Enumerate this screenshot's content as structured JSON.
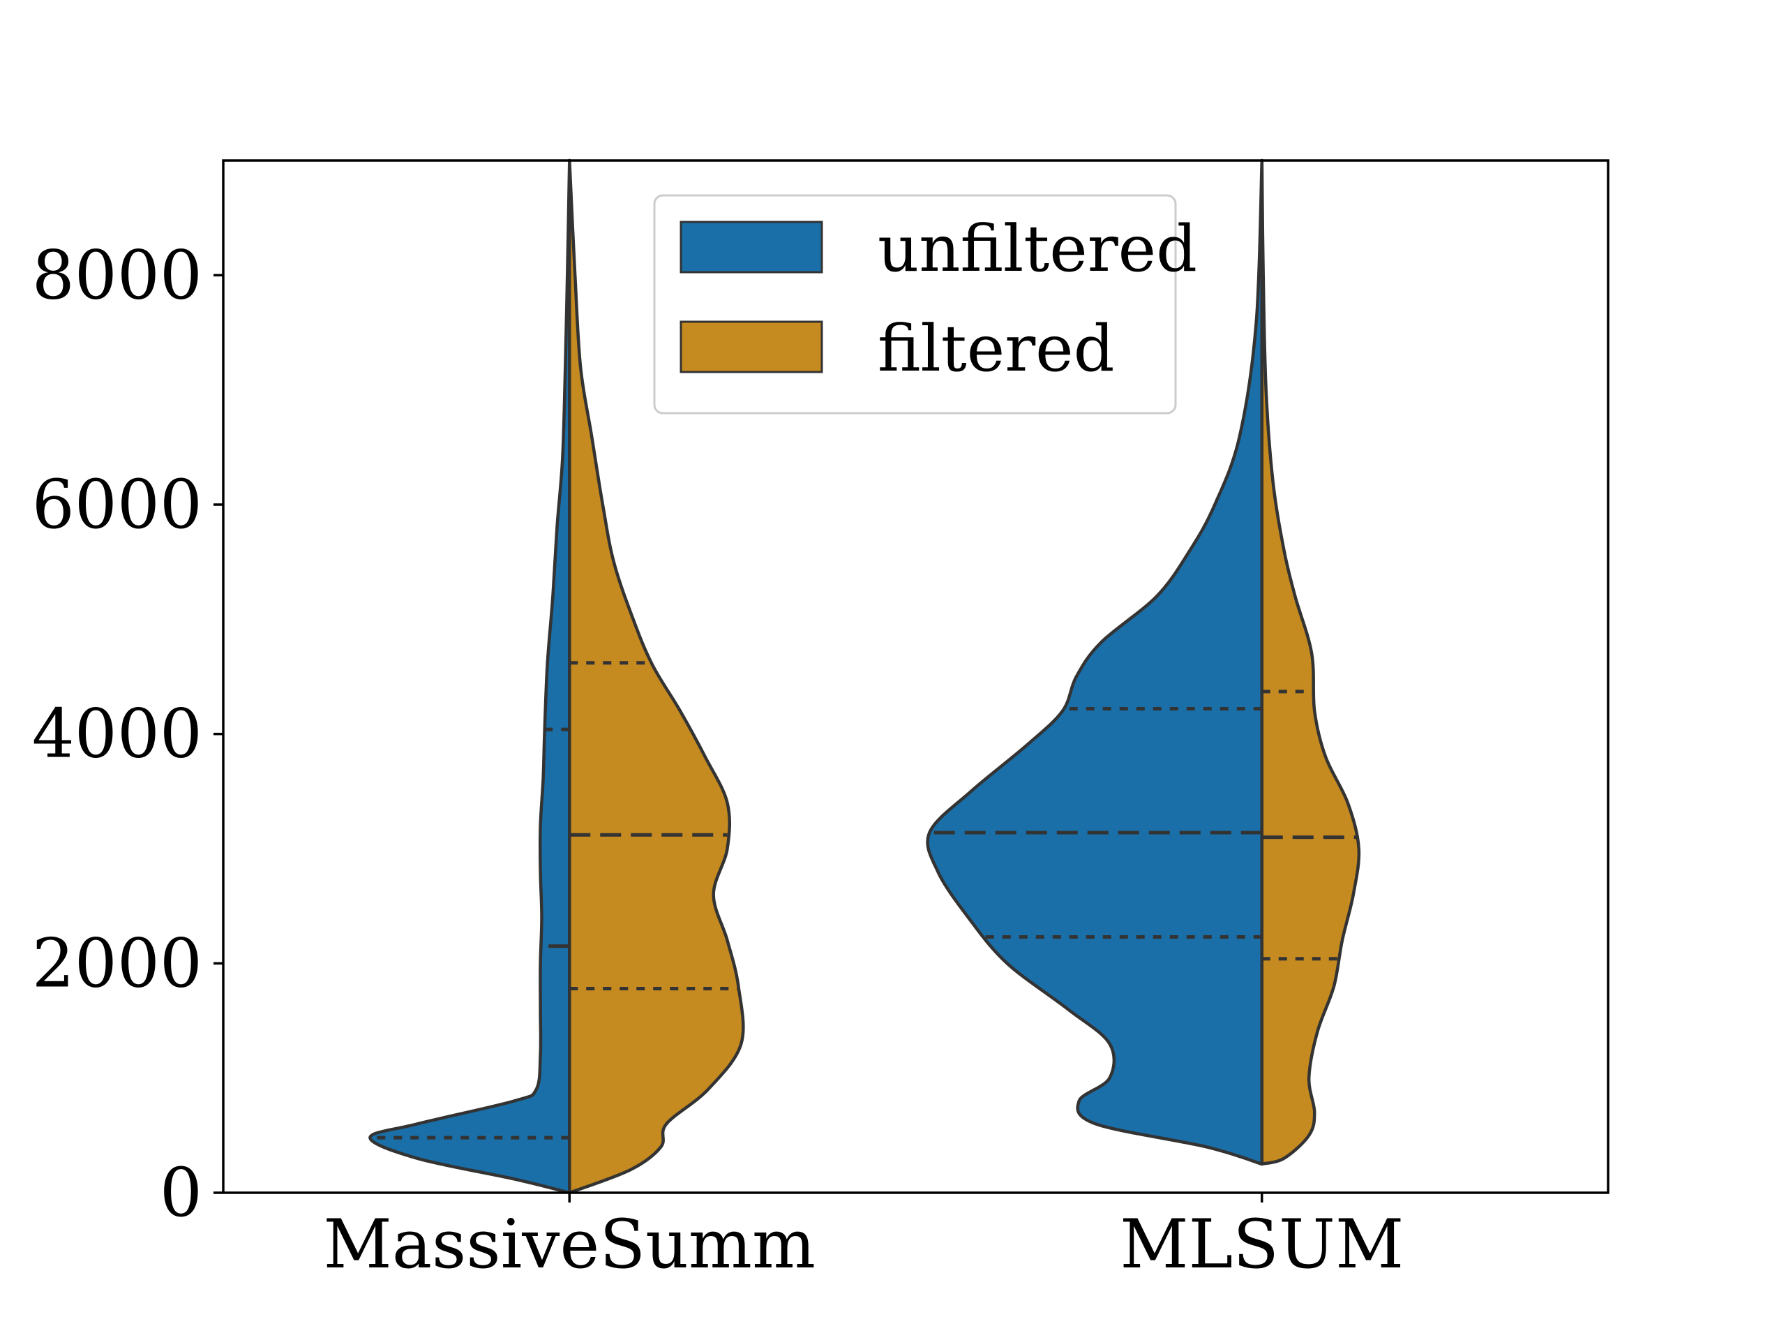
{
  "chart_data": {
    "type": "violin",
    "split": true,
    "categories": [
      "MassiveSumm",
      "MLSUM"
    ],
    "ylim": [
      0,
      9000
    ],
    "yticks": [
      "0",
      "2000",
      "4000",
      "6000",
      "8000"
    ],
    "series": [
      {
        "name": "unfiltered",
        "color": "#1a6fa8",
        "violins": [
          {
            "category": "MassiveSumm",
            "quartiles": [
              480,
              2150,
              4040
            ],
            "profile": [
              [
                0,
                0.0
              ],
              [
                120,
                0.2
              ],
              [
                300,
                0.55
              ],
              [
                480,
                0.72
              ],
              [
                600,
                0.55
              ],
              [
                800,
                0.2
              ],
              [
                900,
                0.12
              ],
              [
                1200,
                0.105
              ],
              [
                1600,
                0.105
              ],
              [
                2000,
                0.105
              ],
              [
                2400,
                0.1
              ],
              [
                2800,
                0.105
              ],
              [
                3200,
                0.105
              ],
              [
                3600,
                0.095
              ],
              [
                4000,
                0.09
              ],
              [
                4600,
                0.08
              ],
              [
                5200,
                0.06
              ],
              [
                5800,
                0.045
              ],
              [
                6400,
                0.025
              ],
              [
                7200,
                0.015
              ],
              [
                8200,
                0.006
              ],
              [
                9000,
                0.0
              ]
            ]
          },
          {
            "category": "MLSUM",
            "quartiles": [
              2230,
              3140,
              4220
            ],
            "profile": [
              [
                250,
                0.0
              ],
              [
                400,
                0.2
              ],
              [
                600,
                0.6
              ],
              [
                800,
                0.66
              ],
              [
                1000,
                0.55
              ],
              [
                1300,
                0.55
              ],
              [
                1600,
                0.7
              ],
              [
                2000,
                0.92
              ],
              [
                2400,
                1.06
              ],
              [
                2800,
                1.17
              ],
              [
                3140,
                1.2
              ],
              [
                3500,
                1.05
              ],
              [
                3900,
                0.85
              ],
              [
                4200,
                0.72
              ],
              [
                4500,
                0.67
              ],
              [
                4800,
                0.58
              ],
              [
                5200,
                0.38
              ],
              [
                5600,
                0.26
              ],
              [
                6000,
                0.17
              ],
              [
                6600,
                0.08
              ],
              [
                7600,
                0.02
              ],
              [
                9000,
                0.0
              ]
            ]
          }
        ]
      },
      {
        "name": "filtered",
        "color": "#c58a20",
        "violins": [
          {
            "category": "MassiveSumm",
            "quartiles": [
              1780,
              3120,
              4620
            ],
            "profile": [
              [
                0,
                0.0
              ],
              [
                200,
                0.22
              ],
              [
                400,
                0.33
              ],
              [
                600,
                0.35
              ],
              [
                900,
                0.5
              ],
              [
                1300,
                0.62
              ],
              [
                1800,
                0.61
              ],
              [
                2200,
                0.57
              ],
              [
                2600,
                0.52
              ],
              [
                3000,
                0.57
              ],
              [
                3400,
                0.57
              ],
              [
                3800,
                0.49
              ],
              [
                4200,
                0.4
              ],
              [
                4600,
                0.3
              ],
              [
                5000,
                0.23
              ],
              [
                5500,
                0.16
              ],
              [
                6000,
                0.12
              ],
              [
                6600,
                0.08
              ],
              [
                7200,
                0.04
              ],
              [
                8000,
                0.02
              ],
              [
                9000,
                0.0
              ]
            ]
          },
          {
            "category": "MLSUM",
            "quartiles": [
              2040,
              3100,
              4370
            ],
            "profile": [
              [
                250,
                0.0
              ],
              [
                300,
                0.08
              ],
              [
                500,
                0.17
              ],
              [
                700,
                0.19
              ],
              [
                1000,
                0.17
              ],
              [
                1400,
                0.2
              ],
              [
                1800,
                0.26
              ],
              [
                2200,
                0.29
              ],
              [
                2600,
                0.33
              ],
              [
                3000,
                0.35
              ],
              [
                3400,
                0.31
              ],
              [
                3800,
                0.23
              ],
              [
                4200,
                0.19
              ],
              [
                4700,
                0.18
              ],
              [
                5200,
                0.12
              ],
              [
                5600,
                0.08
              ],
              [
                6200,
                0.04
              ],
              [
                7000,
                0.015
              ],
              [
                8000,
                0.005
              ],
              [
                9000,
                0.0
              ]
            ]
          }
        ]
      }
    ],
    "legend": {
      "position": "top-center",
      "entries": [
        "unfiltered",
        "filtered"
      ]
    }
  }
}
